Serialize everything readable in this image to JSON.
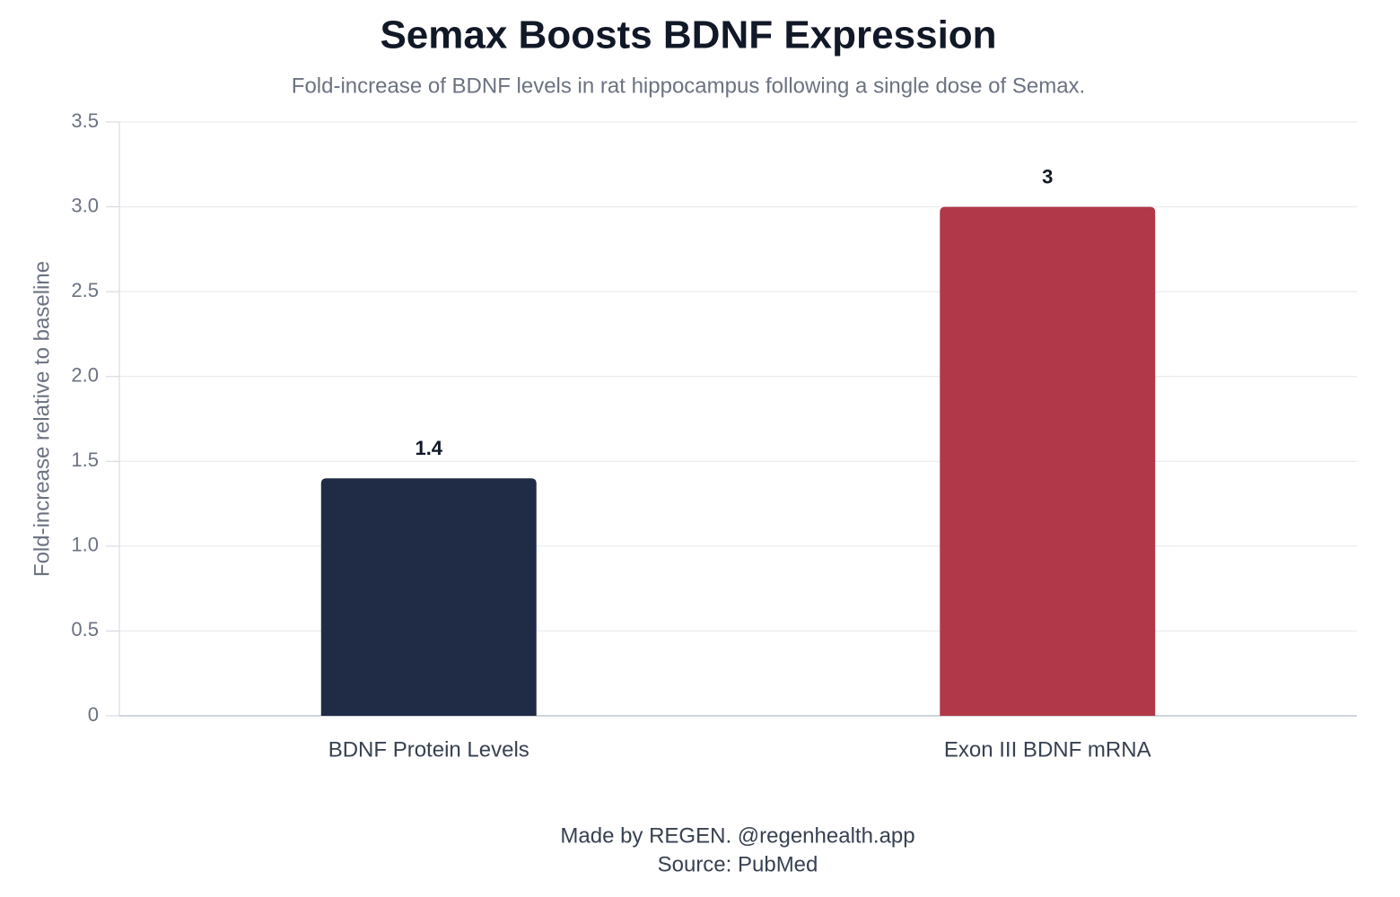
{
  "chart_data": {
    "type": "bar",
    "title": "Semax Boosts BDNF Expression",
    "subtitle": "Fold-increase of BDNF levels in rat hippocampus following a single dose of Semax.",
    "y_label": "Fold-increase relative to baseline",
    "categories": [
      "BDNF Protein Levels",
      "Exon III BDNF mRNA"
    ],
    "values": [
      1.4,
      3
    ],
    "colors": [
      "#202b45",
      "#b13848"
    ],
    "ylim": [
      0,
      3.5
    ],
    "yticks": [
      0,
      0.5,
      {
        "value": 1,
        "label": "1.0"
      },
      1.5,
      {
        "value": 2,
        "label": "2.0"
      },
      2.5,
      {
        "value": 3,
        "label": "3.0"
      },
      3.5
    ],
    "grid": true,
    "credit": "Made by REGEN. @regenhealth.app",
    "source": "Source: PubMed"
  }
}
